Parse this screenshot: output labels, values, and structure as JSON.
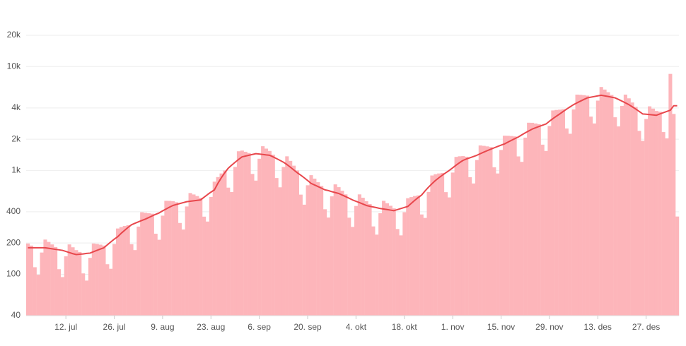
{
  "chart_data": {
    "type": "bar",
    "log_scale": true,
    "grid": true,
    "ylim": [
      40,
      20000
    ],
    "yticks": [
      40,
      100,
      200,
      400,
      {
        "value": 1000,
        "label": "1k"
      },
      {
        "value": 2000,
        "label": "2k"
      },
      {
        "value": 4000,
        "label": "4k"
      },
      {
        "value": 10000,
        "label": "10k"
      },
      {
        "value": 20000,
        "label": "20k"
      }
    ],
    "categories": [
      null,
      null,
      null,
      null,
      null,
      null,
      null,
      null,
      null,
      null,
      null,
      "12. jul",
      null,
      null,
      null,
      null,
      null,
      null,
      null,
      null,
      null,
      null,
      null,
      null,
      null,
      "26. jul",
      null,
      null,
      null,
      null,
      null,
      null,
      null,
      null,
      null,
      null,
      null,
      null,
      null,
      "9. aug",
      null,
      null,
      null,
      null,
      null,
      null,
      null,
      null,
      null,
      null,
      null,
      null,
      null,
      "23. aug",
      null,
      null,
      null,
      null,
      null,
      null,
      null,
      null,
      null,
      null,
      null,
      null,
      null,
      "6. sep",
      null,
      null,
      null,
      null,
      null,
      null,
      null,
      null,
      null,
      null,
      null,
      null,
      null,
      "20. sep",
      null,
      null,
      null,
      null,
      null,
      null,
      null,
      null,
      null,
      null,
      null,
      null,
      null,
      "4. okt",
      null,
      null,
      null,
      null,
      null,
      null,
      null,
      null,
      null,
      null,
      null,
      null,
      null,
      "18. okt",
      null,
      null,
      null,
      null,
      null,
      null,
      null,
      null,
      null,
      null,
      null,
      null,
      null,
      "1. nov",
      null,
      null,
      null,
      null,
      null,
      null,
      null,
      null,
      null,
      null,
      null,
      null,
      null,
      "15. nov",
      null,
      null,
      null,
      null,
      null,
      null,
      null,
      null,
      null,
      null,
      null,
      null,
      null,
      "29. nov",
      null,
      null,
      null,
      null,
      null,
      null,
      null,
      null,
      null,
      null,
      null,
      null,
      null,
      "13. des",
      null,
      null,
      null,
      null,
      null,
      null,
      null,
      null,
      null,
      null,
      null,
      null,
      null,
      "27. des",
      null,
      null,
      null,
      null,
      null,
      null,
      null,
      null,
      null
    ],
    "series": [
      {
        "type": "bar",
        "color": "#fdb5ba",
        "values": [
          198,
          189,
          117,
          99,
          162,
          216,
          205,
          194,
          183,
          112,
          94,
          149,
          194,
          182,
          171,
          164,
          102,
          87,
          144,
          198,
          196,
          193,
          189,
          125,
          113,
          196,
          276,
          285,
          292,
          297,
          195,
          171,
          288,
          396,
          391,
          387,
          383,
          246,
          215,
          367,
          510,
          509,
          506,
          494,
          312,
          270,
          450,
          606,
          587,
          567,
          546,
          359,
          322,
          556,
          780,
          863,
          935,
          998,
          683,
          619,
          1080,
          1530,
          1553,
          1513,
          1470,
          926,
          798,
          1296,
          1710,
          1622,
          1540,
          1418,
          845,
          688,
          1080,
          1368,
          1236,
          1111,
          998,
          585,
          468,
          720,
          900,
          834,
          770,
          709,
          423,
          352,
          563,
          734,
          690,
          638,
          588,
          351,
          286,
          455,
          588,
          546,
          506,
          475,
          289,
          241,
          387,
          510,
          483,
          457,
          431,
          273,
          237,
          396,
          540,
          554,
          567,
          575,
          377,
          349,
          621,
          894,
          920,
          935,
          945,
          618,
          550,
          954,
          1350,
          1369,
          1375,
          1355,
          861,
          749,
          1260,
          1740,
          1725,
          1705,
          1680,
          1073,
          935,
          1575,
          2160,
          2156,
          2145,
          2126,
          1365,
          1210,
          2070,
          2880,
          2875,
          2833,
          2783,
          1771,
          1540,
          2678,
          3780,
          3824,
          3850,
          3885,
          2535,
          2255,
          3870,
          5370,
          5348,
          5308,
          5250,
          3299,
          2833,
          4703,
          6360,
          6009,
          5665,
          5329,
          3250,
          2654,
          4185,
          5370,
          4945,
          4510,
          4095,
          2405,
          1925,
          3128,
          4140,
          3939,
          3740,
          3675,
          2340,
          2035,
          8500,
          3500,
          360
        ]
      },
      {
        "type": "line",
        "color": "#e8474c",
        "values": [
          180,
          180,
          180,
          180,
          180,
          180,
          178,
          176,
          174,
          172,
          170,
          166,
          162,
          158,
          155,
          156,
          157,
          159,
          160,
          165,
          170,
          175,
          180,
          192,
          205,
          218,
          230,
          248,
          265,
          283,
          300,
          310,
          320,
          330,
          340,
          352,
          365,
          378,
          390,
          408,
          425,
          443,
          460,
          470,
          480,
          490,
          500,
          505,
          510,
          515,
          520,
          552,
          585,
          618,
          650,
          750,
          850,
          950,
          1050,
          1125,
          1200,
          1275,
          1350,
          1375,
          1400,
          1425,
          1450,
          1440,
          1425,
          1410,
          1400,
          1350,
          1300,
          1250,
          1200,
          1140,
          1075,
          1010,
          950,
          900,
          850,
          800,
          750,
          725,
          700,
          675,
          650,
          640,
          625,
          612,
          600,
          580,
          560,
          540,
          520,
          505,
          490,
          475,
          460,
          452,
          445,
          438,
          430,
          425,
          420,
          415,
          410,
          420,
          430,
          440,
          450,
          482,
          515,
          548,
          580,
          635,
          690,
          745,
          800,
          850,
          900,
          950,
          1000,
          1060,
          1125,
          1190,
          1250,
          1290,
          1325,
          1362,
          1400,
          1450,
          1500,
          1550,
          1600,
          1650,
          1700,
          1750,
          1800,
          1875,
          1950,
          2025,
          2100,
          2200,
          2300,
          2400,
          2500,
          2575,
          2650,
          2725,
          2800,
          2975,
          3150,
          3325,
          3500,
          3700,
          3900,
          4100,
          4300,
          4475,
          4650,
          4825,
          5000,
          5075,
          5150,
          5225,
          5300,
          5225,
          5150,
          5075,
          5000,
          4825,
          4650,
          4475,
          4300,
          4100,
          3900,
          3700,
          3500,
          3475,
          3450,
          3425,
          3400,
          3500,
          3600,
          3700,
          3800,
          4200,
          4200
        ]
      }
    ]
  }
}
